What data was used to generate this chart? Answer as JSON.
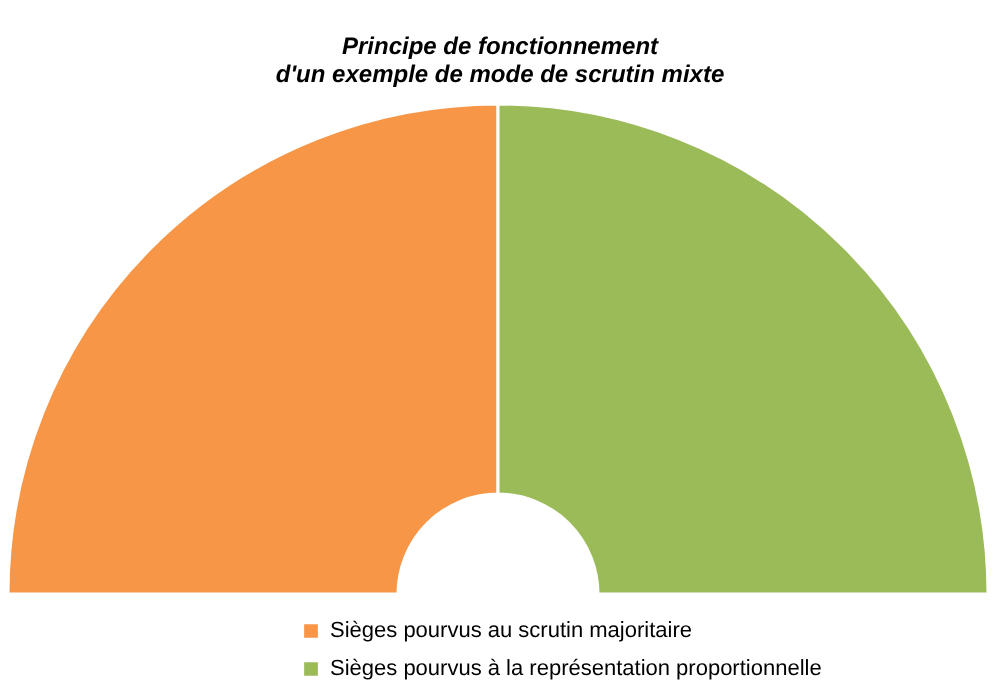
{
  "chart_data": {
    "type": "donut",
    "title": "Principe de fonctionnement\nd'un exemple de mode de scrutin mixte",
    "categories": [
      "Sièges pourvus au scrutin majoritaire",
      "Sièges pourvus à la représentation proportionnelle"
    ],
    "values": [
      50,
      50
    ],
    "colors": [
      "#f79646",
      "#9bbb59"
    ],
    "legend": "bottom"
  }
}
